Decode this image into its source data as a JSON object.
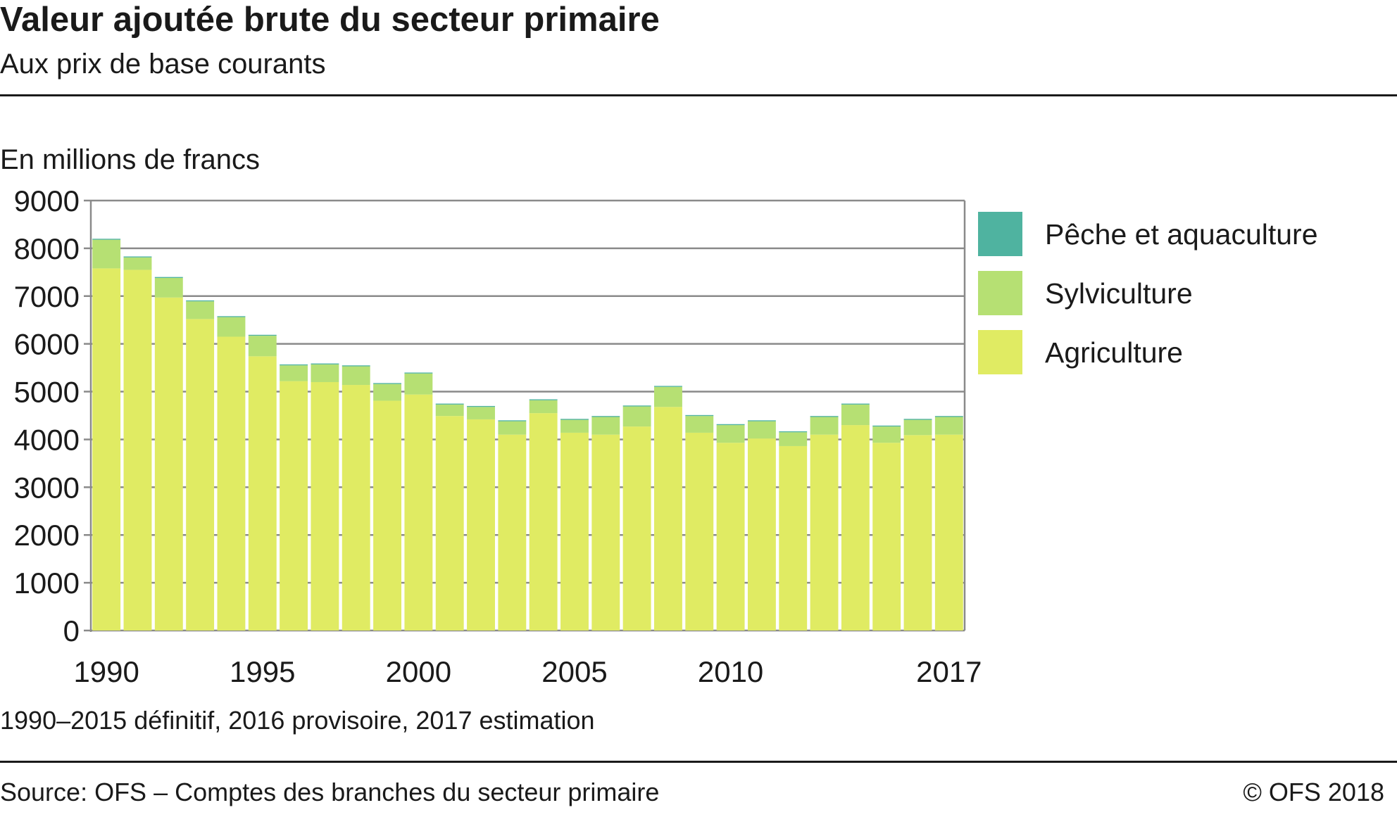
{
  "title": "Valeur ajoutée brute du secteur primaire",
  "subtitle": "Aux prix de base courants",
  "unit_label": "En millions de francs",
  "note": "1990–2015 définitif, 2016 provisoire, 2017 estimation",
  "source": "Source: OFS – Comptes des branches du secteur primaire",
  "copyright": "© OFS  2018",
  "chart_data": {
    "type": "bar",
    "stacked": true,
    "title": "Valeur ajoutée brute du secteur primaire",
    "subtitle": "Aux prix de base courants",
    "ylabel": "En millions de francs",
    "xlabel": "",
    "ylim": [
      0,
      9000
    ],
    "yticks": [
      0,
      1000,
      2000,
      3000,
      4000,
      5000,
      6000,
      7000,
      8000,
      9000
    ],
    "grid": true,
    "legend_position": "right",
    "categories": [
      1990,
      1991,
      1992,
      1993,
      1994,
      1995,
      1996,
      1997,
      1998,
      1999,
      2000,
      2001,
      2002,
      2003,
      2004,
      2005,
      2006,
      2007,
      2008,
      2009,
      2010,
      2011,
      2012,
      2013,
      2014,
      2015,
      2016,
      2017
    ],
    "xtick_labels": [
      "1990",
      "1995",
      "2000",
      "2005",
      "2010",
      "2017"
    ],
    "xtick_years": [
      1990,
      1995,
      2000,
      2005,
      2010,
      2017
    ],
    "series": [
      {
        "name": "Agriculture",
        "color": "#e0eb63",
        "values": [
          7580,
          7550,
          6970,
          6520,
          6150,
          5740,
          5220,
          5200,
          5140,
          4810,
          4940,
          4490,
          4420,
          4100,
          4550,
          4140,
          4100,
          4270,
          4680,
          4140,
          3930,
          4020,
          3860,
          4100,
          4300,
          3930,
          4090,
          4100
        ]
      },
      {
        "name": "Sylviculture",
        "color": "#b6e073",
        "values": [
          600,
          260,
          410,
          370,
          410,
          430,
          330,
          370,
          390,
          350,
          440,
          240,
          260,
          280,
          270,
          270,
          370,
          420,
          420,
          350,
          370,
          360,
          290,
          370,
          430,
          340,
          320,
          370
        ]
      },
      {
        "name": "Pêche et aquaculture",
        "color": "#4fb3a0",
        "values": [
          20,
          20,
          20,
          20,
          20,
          20,
          20,
          20,
          20,
          20,
          20,
          20,
          20,
          20,
          20,
          20,
          20,
          20,
          20,
          20,
          20,
          20,
          20,
          20,
          20,
          20,
          20,
          20
        ]
      }
    ],
    "legend_order": [
      "Pêche et aquaculture",
      "Sylviculture",
      "Agriculture"
    ]
  }
}
